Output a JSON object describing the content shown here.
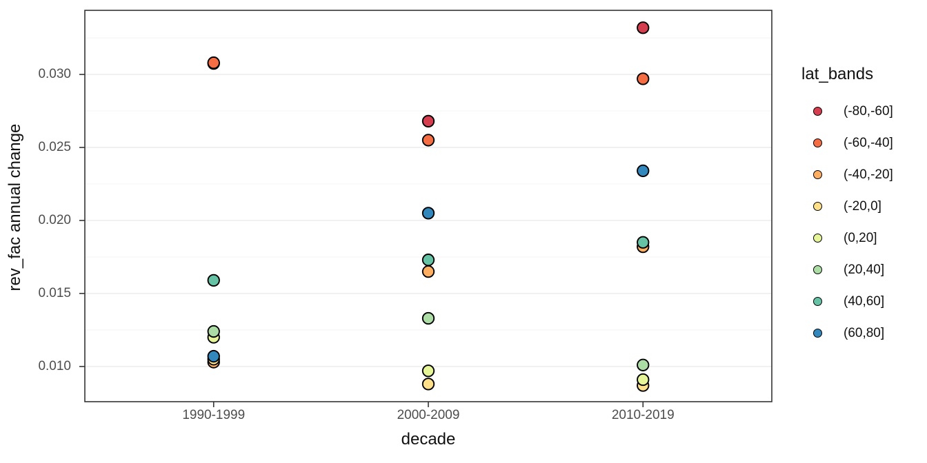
{
  "figure": {
    "background": "#ffffff",
    "panel_background": "#ffffff",
    "panel_border_color": "#333333",
    "grid_major_color": "#ebebeb",
    "grid_minor_color": "#f0f0f0",
    "tick_mark_color": "#333333",
    "tick_label_color": "#4d4d4d",
    "title_text_color": "#111111",
    "point_outline_color": "#000000"
  },
  "chart_data": {
    "type": "scatter",
    "title": "",
    "xlabel": "decade",
    "ylabel": "rev_fac annual change",
    "categories": [
      "1990-1999",
      "2000-2009",
      "2010-2019"
    ],
    "ylim": [
      0.00759,
      0.03439
    ],
    "y_major_ticks": [
      0.01,
      0.015,
      0.02,
      0.025,
      0.03
    ],
    "y_tick_labels": [
      "0.010",
      "0.015",
      "0.020",
      "0.025",
      "0.030"
    ],
    "y_minor_ticks": [
      0.0125,
      0.0175,
      0.0225,
      0.0275,
      0.0325
    ],
    "grid": true,
    "legend_title": "lat_bands",
    "legend_position": "right",
    "series": [
      {
        "name": "(-80,-60]",
        "color": "#d53e4f",
        "values": [
          0.03075,
          0.0268,
          0.0332
        ]
      },
      {
        "name": "(-60,-40]",
        "color": "#f46d43",
        "values": [
          0.0308,
          0.0255,
          0.0297
        ]
      },
      {
        "name": "(-40,-20]",
        "color": "#fdae61",
        "values": [
          0.0103,
          0.0165,
          0.0182
        ]
      },
      {
        "name": "(-20,0]",
        "color": "#fee08b",
        "values": [
          0.0105,
          0.0088,
          0.0087
        ]
      },
      {
        "name": "(0,20]",
        "color": "#e6f598",
        "values": [
          0.012,
          0.0097,
          0.0091
        ]
      },
      {
        "name": "(20,40]",
        "color": "#abdda4",
        "values": [
          0.0124,
          0.0133,
          0.0101
        ]
      },
      {
        "name": "(40,60]",
        "color": "#66c2a5",
        "values": [
          0.0159,
          0.0173,
          0.0185
        ]
      },
      {
        "name": "(60,80]",
        "color": "#3288bd",
        "values": [
          0.0107,
          0.0205,
          0.0234
        ]
      }
    ]
  }
}
